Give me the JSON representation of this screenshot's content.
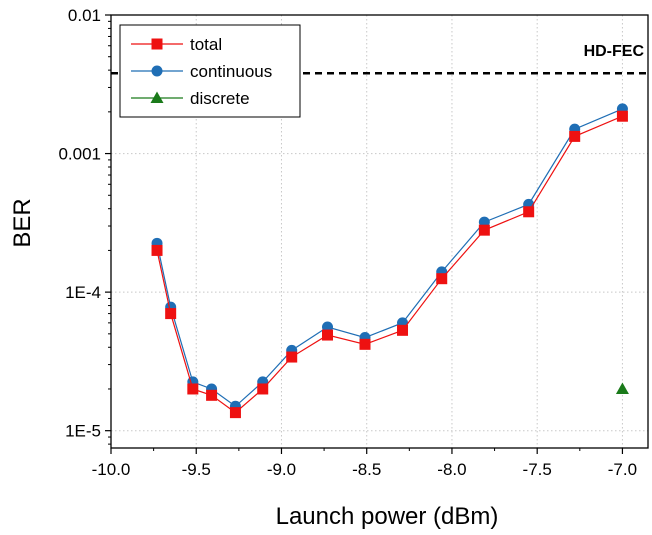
{
  "chart_data": {
    "type": "scatter",
    "title": "",
    "xlabel": "Launch power (dBm)",
    "ylabel": "BER",
    "xlim": [
      -10.0,
      -6.85
    ],
    "ylim": [
      7.5e-06,
      0.01
    ],
    "yscale": "log",
    "grid": true,
    "legend_position": "top-left",
    "xticks": [
      -10.0,
      -9.5,
      -9.0,
      -8.5,
      -8.0,
      -7.5,
      -7.0
    ],
    "xtick_labels": [
      "-10.0",
      "-9.5",
      "-9.0",
      "-8.5",
      "-8.0",
      "-7.5",
      "-7.0"
    ],
    "yticks": [
      1e-05,
      0.0001,
      0.001,
      0.01
    ],
    "ytick_labels": [
      "1E-5",
      "1E-4",
      "0.001",
      "0.01"
    ],
    "series": [
      {
        "name": "total",
        "color": "#ee1111",
        "marker": "square",
        "x": [
          -9.73,
          -9.65,
          -9.52,
          -9.41,
          -9.27,
          -9.11,
          -8.94,
          -8.73,
          -8.51,
          -8.29,
          -8.06,
          -7.81,
          -7.55,
          -7.28,
          -7.0
        ],
        "y": [
          0.0002,
          7e-05,
          2e-05,
          1.8e-05,
          1.35e-05,
          2e-05,
          3.4e-05,
          4.9e-05,
          4.2e-05,
          5.3e-05,
          0.000125,
          0.00028,
          0.00038,
          0.00133,
          0.00186
        ]
      },
      {
        "name": "continuous",
        "color": "#1f6eb5",
        "marker": "circle",
        "x": [
          -9.73,
          -9.65,
          -9.52,
          -9.41,
          -9.27,
          -9.11,
          -8.94,
          -8.73,
          -8.51,
          -8.29,
          -8.06,
          -7.81,
          -7.55,
          -7.28,
          -7.0
        ],
        "y": [
          0.000225,
          7.8e-05,
          2.25e-05,
          2e-05,
          1.5e-05,
          2.25e-05,
          3.8e-05,
          5.6e-05,
          4.7e-05,
          6e-05,
          0.00014,
          0.00032,
          0.00043,
          0.0015,
          0.0021
        ]
      },
      {
        "name": "discrete",
        "color": "#1a7a1a",
        "marker": "triangle",
        "x": [
          -7.0
        ],
        "y": [
          2e-05
        ]
      }
    ],
    "threshold": {
      "label": "HD-FEC",
      "y": 0.0038
    }
  }
}
